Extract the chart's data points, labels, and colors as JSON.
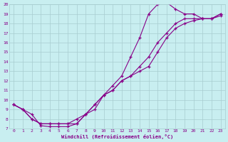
{
  "xlabel": "Windchill (Refroidissement éolien,°C)",
  "xlim": [
    -0.5,
    23.5
  ],
  "ylim": [
    7,
    20
  ],
  "xticks": [
    0,
    1,
    2,
    3,
    4,
    5,
    6,
    7,
    8,
    9,
    10,
    11,
    12,
    13,
    14,
    15,
    16,
    17,
    18,
    19,
    20,
    21,
    22,
    23
  ],
  "yticks": [
    7,
    8,
    9,
    10,
    11,
    12,
    13,
    14,
    15,
    16,
    17,
    18,
    19,
    20
  ],
  "bg_color": "#c8eef0",
  "grid_color": "#a8ccd0",
  "line_color": "#880088",
  "line1_x": [
    0,
    1,
    2,
    3,
    4,
    5,
    6,
    7,
    8,
    9,
    10,
    11,
    12,
    13,
    14,
    15,
    16,
    17,
    18,
    19,
    20,
    21,
    22,
    23
  ],
  "line1_y": [
    9.5,
    9.0,
    8.5,
    7.3,
    7.2,
    7.2,
    7.2,
    7.5,
    8.5,
    9.0,
    10.5,
    11.5,
    12.5,
    14.5,
    16.5,
    19.0,
    20.0,
    20.2,
    19.5,
    19.0,
    19.0,
    18.5,
    18.5,
    19.0
  ],
  "line2_x": [
    0,
    1,
    2,
    3,
    4,
    5,
    6,
    7,
    8,
    9,
    10,
    11,
    12,
    13,
    14,
    15,
    16,
    17,
    18,
    19,
    20,
    21,
    22,
    23
  ],
  "line2_y": [
    9.5,
    9.0,
    8.0,
    7.5,
    7.5,
    7.5,
    7.5,
    7.5,
    8.5,
    9.5,
    10.5,
    11.0,
    12.0,
    12.5,
    13.5,
    14.5,
    16.0,
    17.0,
    18.0,
    18.5,
    18.5,
    18.5,
    18.5,
    19.0
  ],
  "line3_x": [
    0,
    1,
    2,
    3,
    4,
    5,
    6,
    7,
    8,
    9,
    10,
    11,
    12,
    13,
    14,
    15,
    16,
    17,
    18,
    19,
    20,
    21,
    22,
    23
  ],
  "line3_y": [
    9.5,
    9.0,
    8.0,
    7.5,
    7.5,
    7.5,
    7.5,
    8.0,
    8.5,
    9.5,
    10.5,
    11.0,
    12.0,
    12.5,
    13.0,
    13.5,
    15.0,
    16.5,
    17.5,
    18.0,
    18.3,
    18.5,
    18.5,
    18.8
  ],
  "font_color": "#880088",
  "marker": "+"
}
